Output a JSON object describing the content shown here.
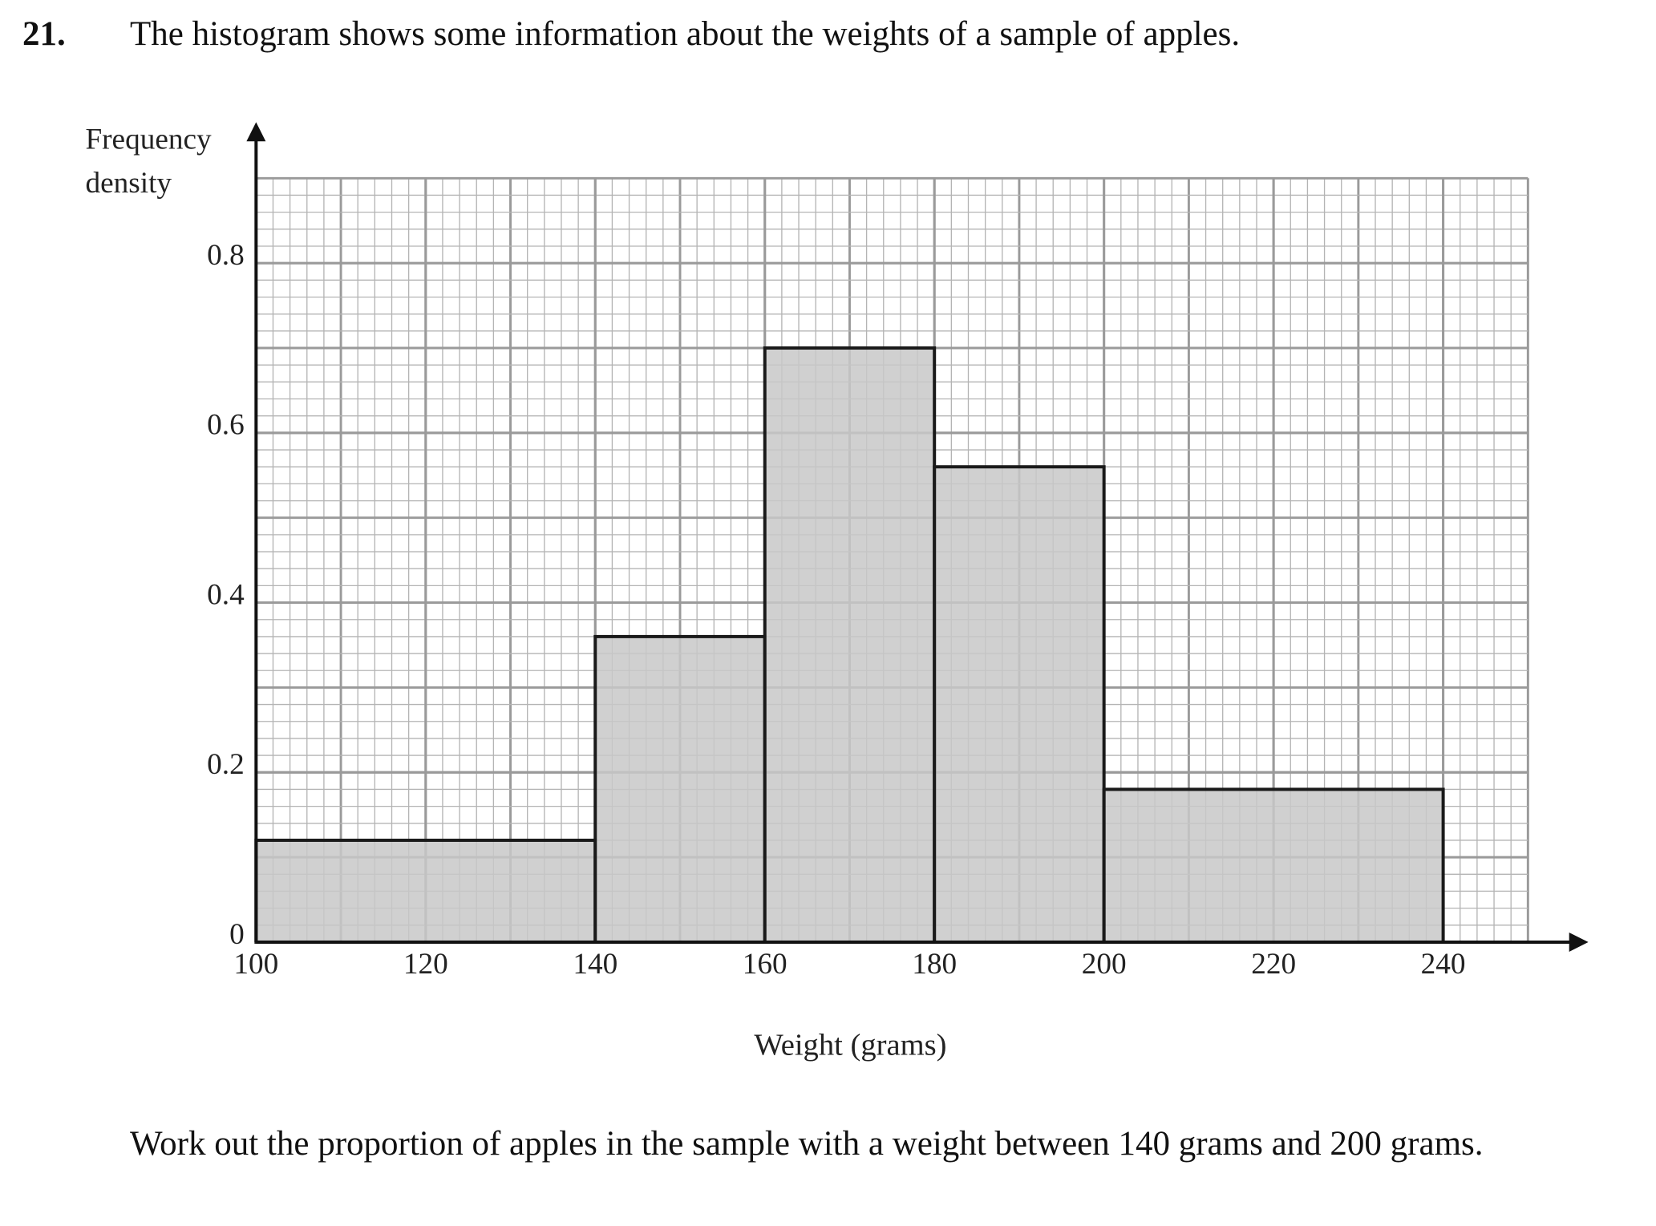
{
  "question": {
    "number": "21.",
    "text": "The histogram shows some information about the weights of a sample of apples.",
    "prompt": "Work out the proportion of apples in the sample with a weight between 140 grams and 200 grams."
  },
  "chart_data": {
    "type": "histogram",
    "xlabel": "Weight (grams)",
    "ylabel": [
      "Frequency",
      "density"
    ],
    "bins": [
      100,
      140,
      160,
      180,
      200,
      240
    ],
    "values": [
      0.12,
      0.36,
      0.7,
      0.56,
      0.18
    ],
    "color": "#c8c8c8",
    "xlim": [
      100,
      250
    ],
    "ylim": [
      0,
      0.9
    ],
    "xticks": [
      100,
      120,
      140,
      160,
      180,
      200,
      220,
      240
    ],
    "yticks": [
      0,
      0.2,
      0.4,
      0.6,
      0.8
    ],
    "grid": true
  }
}
